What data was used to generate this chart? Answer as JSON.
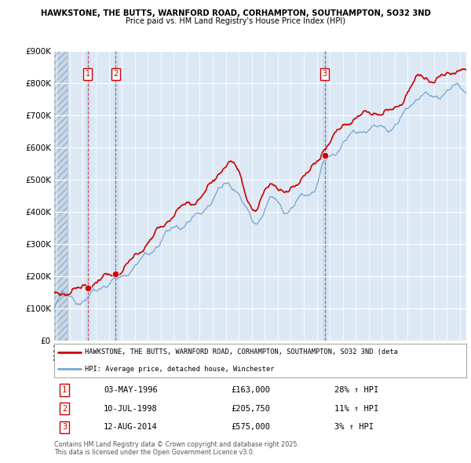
{
  "title_line1": "HAWKSTONE, THE BUTTS, WARNFORD ROAD, CORHAMPTON, SOUTHAMPTON, SO32 3ND",
  "title_line2": "Price paid vs. HM Land Registry's House Price Index (HPI)",
  "background_color": "#ffffff",
  "plot_bg_color": "#dce9f5",
  "grid_color": "#ffffff",
  "sale_dates_year": [
    1996.37,
    1998.53,
    2014.62
  ],
  "sale_prices": [
    163000,
    205750,
    575000
  ],
  "sale_labels": [
    "1",
    "2",
    "3"
  ],
  "legend_entries": [
    "HAWKSTONE, THE BUTTS, WARNFORD ROAD, CORHAMPTON, SOUTHAMPTON, SO32 3ND (deta",
    "HPI: Average price, detached house, Winchester"
  ],
  "legend_colors": [
    "#cc0000",
    "#7aa7d0"
  ],
  "table_rows": [
    {
      "label": "1",
      "date": "03-MAY-1996",
      "price": "£163,000",
      "change": "28% ↑ HPI"
    },
    {
      "label": "2",
      "date": "10-JUL-1998",
      "price": "£205,750",
      "change": "11% ↑ HPI"
    },
    {
      "label": "3",
      "date": "12-AUG-2014",
      "price": "£575,000",
      "change": "3% ↑ HPI"
    }
  ],
  "footer": "Contains HM Land Registry data © Crown copyright and database right 2025.\nThis data is licensed under the Open Government Licence v3.0.",
  "ylim": [
    0,
    900000
  ],
  "yticks": [
    0,
    100000,
    200000,
    300000,
    400000,
    500000,
    600000,
    700000,
    800000,
    900000
  ],
  "xmin": 1993.8,
  "xmax": 2025.5
}
